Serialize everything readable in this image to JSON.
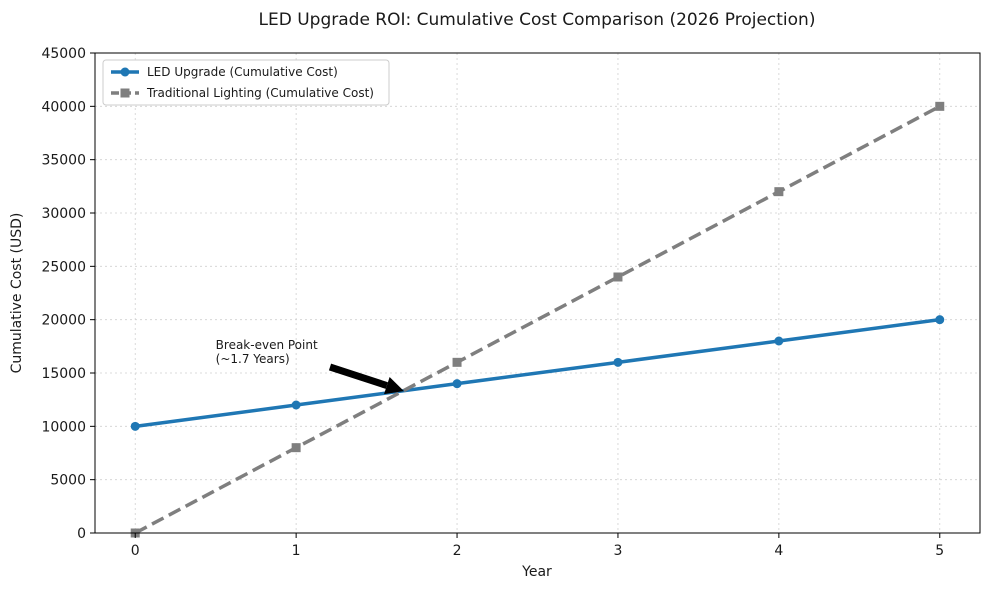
{
  "chart_data": {
    "type": "line",
    "title": "LED Upgrade ROI: Cumulative Cost Comparison (2026 Projection)",
    "xlabel": "Year",
    "ylabel": "Cumulative Cost (USD)",
    "x": [
      0,
      1,
      2,
      3,
      4,
      5
    ],
    "xlim": [
      -0.25,
      5.25
    ],
    "ylim": [
      0,
      45000
    ],
    "yticks": [
      0,
      5000,
      10000,
      15000,
      20000,
      25000,
      30000,
      35000,
      40000,
      45000
    ],
    "xticks": [
      0,
      1,
      2,
      3,
      4,
      5
    ],
    "grid": true,
    "legend_position": "upper-left",
    "series": [
      {
        "name": "LED Upgrade (Cumulative Cost)",
        "values": [
          10000,
          12000,
          14000,
          16000,
          18000,
          20000
        ],
        "color": "#1f77b4",
        "marker": "circle",
        "line_style": "solid"
      },
      {
        "name": "Traditional Lighting (Cumulative Cost)",
        "values": [
          0,
          8000,
          16000,
          24000,
          32000,
          40000
        ],
        "color": "#7f7f7f",
        "marker": "square",
        "line_style": "dashed"
      }
    ],
    "annotation": {
      "text_lines": [
        "Break-even Point",
        "(~1.7 Years)"
      ],
      "text_at": [
        0.5,
        16500
      ],
      "points_to": [
        1.67,
        13300
      ]
    }
  }
}
